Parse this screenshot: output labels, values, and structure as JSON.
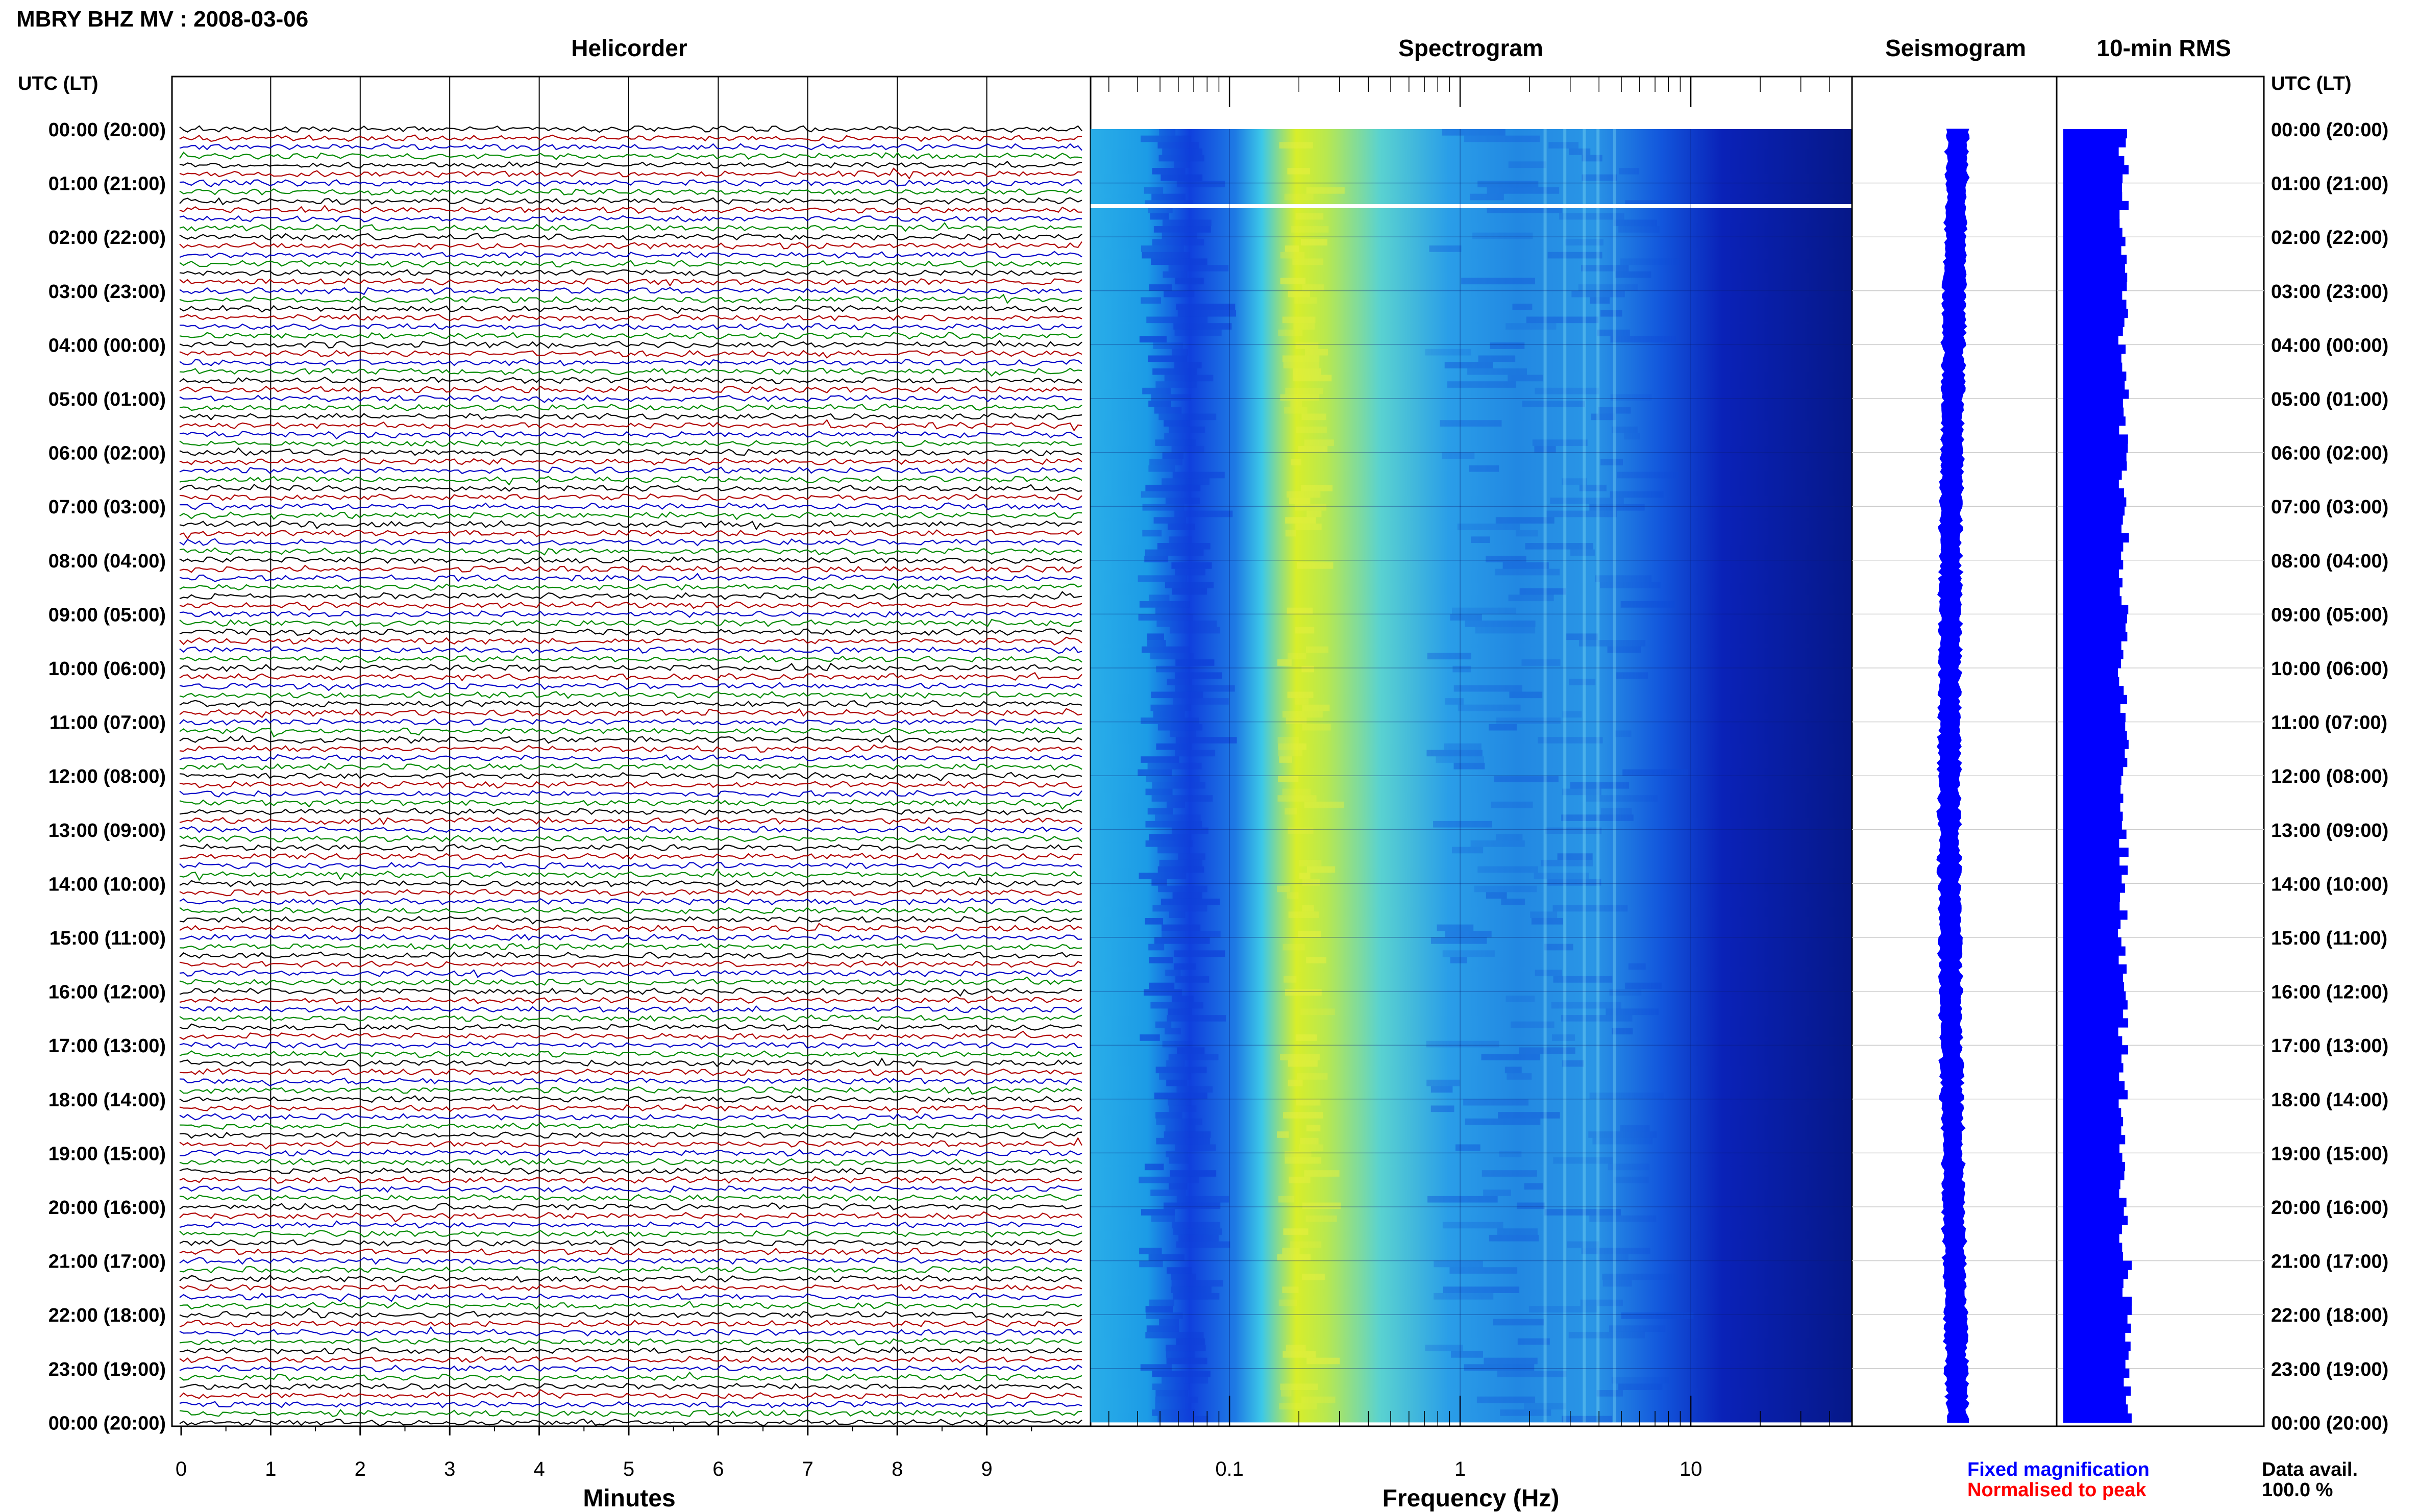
{
  "title": "MBRY BHZ MV : 2008-03-06",
  "panels": {
    "helicorder": "Helicorder",
    "spectrogram": "Spectrogram",
    "seismogram": "Seismogram",
    "rms": "10-min RMS"
  },
  "time_axis": {
    "header": "UTC (LT)",
    "labels": [
      "00:00 (20:00)",
      "01:00 (21:00)",
      "02:00 (22:00)",
      "03:00 (23:00)",
      "04:00 (00:00)",
      "05:00 (01:00)",
      "06:00 (02:00)",
      "07:00 (03:00)",
      "08:00 (04:00)",
      "09:00 (05:00)",
      "10:00 (06:00)",
      "11:00 (07:00)",
      "12:00 (08:00)",
      "13:00 (09:00)",
      "14:00 (10:00)",
      "15:00 (11:00)",
      "16:00 (12:00)",
      "17:00 (13:00)",
      "18:00 (14:00)",
      "19:00 (15:00)",
      "20:00 (16:00)",
      "21:00 (17:00)",
      "22:00 (18:00)",
      "23:00 (19:00)",
      "00:00 (20:00)"
    ]
  },
  "chart_data": [
    {
      "type": "line",
      "name": "Helicorder",
      "xlabel": "Minutes",
      "xticks": [
        0,
        1,
        2,
        3,
        4,
        5,
        6,
        7,
        8,
        9
      ],
      "xlim": [
        0,
        10
      ],
      "trace_count": 144,
      "trace_colors": [
        "#000000",
        "#b00000",
        "#0000c8",
        "#008a00"
      ]
    },
    {
      "type": "heatmap",
      "name": "Spectrogram",
      "xlabel": "Frequency (Hz)",
      "xscale": "log",
      "xticks": [
        0.1,
        1,
        10
      ],
      "xtick_labels": [
        "0.1",
        "1",
        "10"
      ],
      "xlim": [
        0.025,
        50
      ],
      "energy_peak_hz": 0.25,
      "gap_utc_hour": 1.43
    },
    {
      "type": "line",
      "name": "Seismogram",
      "color": "#0000ff",
      "legend": {
        "fixed": "Fixed magnification",
        "fixed_color": "#0000ff",
        "normalised": "Normalised to peak",
        "normalised_color": "#ff0000"
      }
    },
    {
      "type": "bar",
      "name": "10-min RMS",
      "color": "#0000ff",
      "data_availability_label": "Data avail.",
      "data_availability": "100.0 %"
    }
  ]
}
